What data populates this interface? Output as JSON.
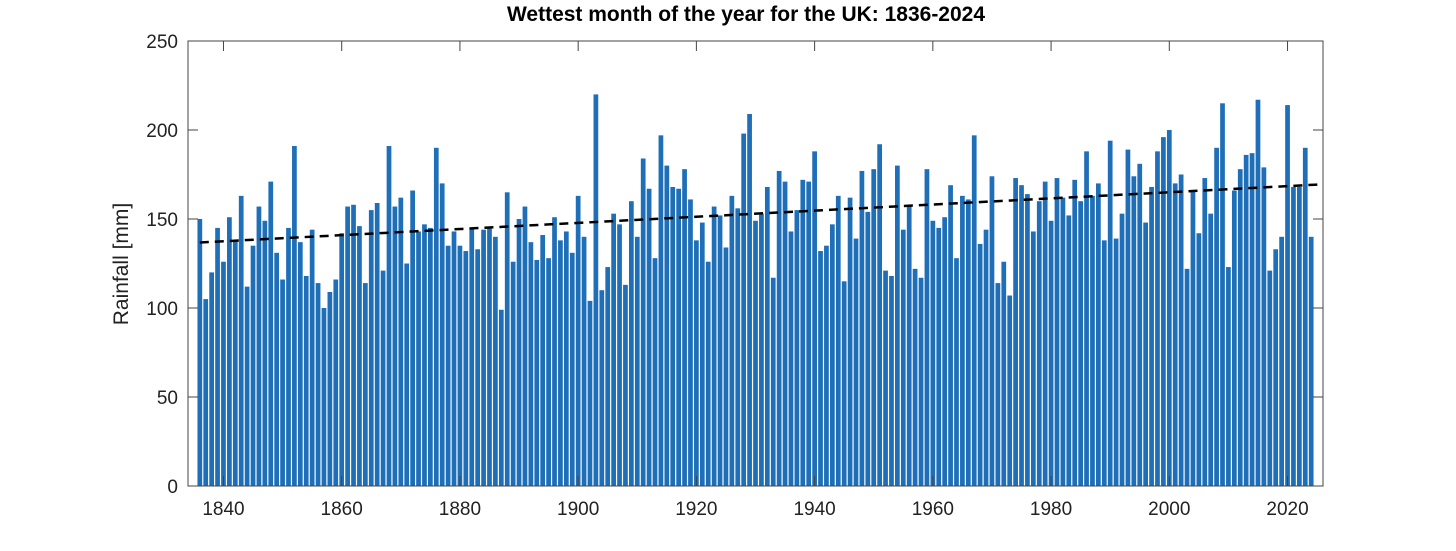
{
  "chart_data": {
    "type": "bar",
    "title": "Wettest month of the year for the UK: 1836-2024",
    "xlabel": "",
    "ylabel": "Rainfall [mm]",
    "xlim": [
      1834,
      2026
    ],
    "ylim": [
      0,
      250
    ],
    "x_ticks": [
      1840,
      1860,
      1880,
      1900,
      1920,
      1940,
      1960,
      1980,
      2000,
      2020
    ],
    "y_ticks": [
      0,
      50,
      100,
      150,
      200,
      250
    ],
    "grid": false,
    "colors": {
      "bar": "#1f6fb8",
      "trend": "#000000",
      "axis": "#444444"
    },
    "series": [
      {
        "name": "Wettest month rainfall",
        "start_year": 1836,
        "values": [
          150,
          105,
          120,
          145,
          126,
          151,
          138,
          163,
          112,
          135,
          157,
          149,
          171,
          131,
          116,
          145,
          191,
          137,
          118,
          144,
          114,
          100,
          109,
          116,
          142,
          157,
          158,
          146,
          114,
          155,
          159,
          121,
          191,
          157,
          162,
          125,
          166,
          143,
          147,
          145,
          190,
          170,
          135,
          143,
          135,
          132,
          145,
          133,
          144,
          145,
          140,
          99,
          165,
          126,
          150,
          157,
          137,
          127,
          141,
          128,
          151,
          138,
          143,
          131,
          163,
          140,
          104,
          220,
          110,
          123,
          153,
          147,
          113,
          160,
          140,
          184,
          167,
          128,
          197,
          180,
          168,
          167,
          178,
          161,
          138,
          148,
          126,
          157,
          152,
          134,
          163,
          156,
          198,
          209,
          149,
          153,
          168,
          117,
          177,
          171,
          143,
          155,
          172,
          171,
          188,
          132,
          135,
          147,
          163,
          115,
          162,
          139,
          177,
          154,
          178,
          192,
          121,
          118,
          180,
          144,
          158,
          122,
          117,
          178,
          149,
          145,
          151,
          169,
          128,
          163,
          161,
          197,
          136,
          144,
          174,
          114,
          126,
          107,
          173,
          169,
          164,
          143,
          160,
          171,
          149,
          173,
          162,
          152,
          172,
          160,
          188,
          163,
          170,
          138,
          194,
          139,
          153,
          189,
          174,
          181,
          148,
          168,
          188,
          196,
          200,
          170,
          175,
          122,
          166,
          142,
          173,
          153,
          190,
          215,
          123,
          166,
          178,
          186,
          187,
          217,
          179,
          121,
          133,
          140,
          214,
          168,
          168,
          190,
          140
        ]
      },
      {
        "name": "Linear trend",
        "type": "trend",
        "x": [
          1836,
          2026
        ],
        "y": [
          136.8,
          169.5
        ]
      }
    ]
  }
}
